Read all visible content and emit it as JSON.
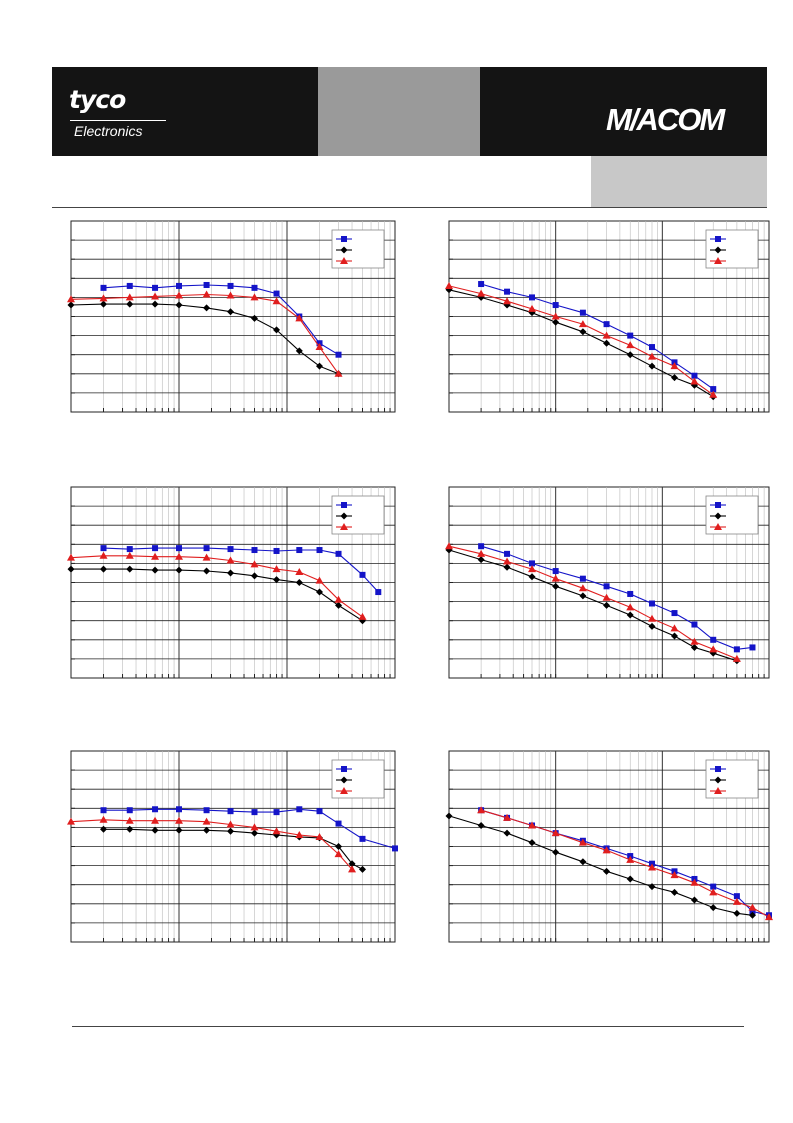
{
  "header": {
    "brand_tyco": "tyco",
    "brand_electronics": "Electronics",
    "brand_macom": "M/ACOM"
  },
  "colors": {
    "series_blue": "#1414c8",
    "series_black": "#000000",
    "series_red": "#e01e1e",
    "header_dark": "#141414",
    "header_gray": "#9a9a9a",
    "header_light_gray": "#c8c8c8"
  },
  "chart_data": [
    {
      "type": "line",
      "log_x": true,
      "xlim": [
        10,
        10000
      ],
      "ylim": [
        0,
        10
      ],
      "legend_position": "top-right",
      "grid": true,
      "series": [
        {
          "color": "blue",
          "marker": "square",
          "x": [
            20,
            35,
            60,
            100,
            180,
            300,
            500,
            800,
            1300,
            2000,
            3000
          ],
          "y": [
            6.5,
            6.6,
            6.5,
            6.6,
            6.65,
            6.6,
            6.5,
            6.2,
            5.0,
            3.6,
            3.0
          ]
        },
        {
          "color": "black",
          "marker": "diamond",
          "x": [
            10,
            20,
            35,
            60,
            100,
            180,
            300,
            500,
            800,
            1300,
            2000,
            3000
          ],
          "y": [
            5.6,
            5.65,
            5.65,
            5.65,
            5.6,
            5.45,
            5.25,
            4.9,
            4.3,
            3.2,
            2.4,
            2.0
          ]
        },
        {
          "color": "red",
          "marker": "triangle",
          "x": [
            10,
            20,
            35,
            60,
            100,
            180,
            300,
            500,
            800,
            1300,
            2000,
            3000
          ],
          "y": [
            5.9,
            5.95,
            6.0,
            6.05,
            6.1,
            6.15,
            6.1,
            6.0,
            5.8,
            4.9,
            3.4,
            2.0
          ]
        }
      ]
    },
    {
      "type": "line",
      "log_x": true,
      "xlim": [
        10,
        10000
      ],
      "ylim": [
        0,
        10
      ],
      "legend_position": "top-right",
      "grid": true,
      "series": [
        {
          "color": "blue",
          "marker": "square",
          "x": [
            20,
            35,
            60,
            100,
            180,
            300,
            500,
            800,
            1300,
            2000,
            3000
          ],
          "y": [
            6.7,
            6.3,
            6.0,
            5.6,
            5.2,
            4.6,
            4.0,
            3.4,
            2.6,
            1.9,
            1.2
          ]
        },
        {
          "color": "black",
          "marker": "diamond",
          "x": [
            10,
            20,
            35,
            60,
            100,
            180,
            300,
            500,
            800,
            1300,
            2000,
            3000
          ],
          "y": [
            6.4,
            6.0,
            5.6,
            5.2,
            4.7,
            4.2,
            3.6,
            3.0,
            2.4,
            1.8,
            1.4,
            0.8
          ]
        },
        {
          "color": "red",
          "marker": "triangle",
          "x": [
            10,
            20,
            35,
            60,
            100,
            180,
            300,
            500,
            800,
            1300,
            2000,
            3000
          ],
          "y": [
            6.6,
            6.2,
            5.8,
            5.4,
            5.0,
            4.6,
            4.0,
            3.5,
            2.9,
            2.4,
            1.6,
            0.9
          ]
        }
      ]
    },
    {
      "type": "line",
      "log_x": true,
      "xlim": [
        10,
        10000
      ],
      "ylim": [
        0,
        10
      ],
      "legend_position": "top-right",
      "grid": true,
      "series": [
        {
          "color": "blue",
          "marker": "square",
          "x": [
            20,
            35,
            60,
            100,
            180,
            300,
            500,
            800,
            1300,
            2000,
            3000,
            5000,
            7000
          ],
          "y": [
            6.8,
            6.75,
            6.8,
            6.8,
            6.8,
            6.75,
            6.7,
            6.65,
            6.7,
            6.7,
            6.5,
            5.4,
            4.5
          ]
        },
        {
          "color": "black",
          "marker": "diamond",
          "x": [
            10,
            20,
            35,
            60,
            100,
            180,
            300,
            500,
            800,
            1300,
            2000,
            3000,
            5000
          ],
          "y": [
            5.7,
            5.7,
            5.7,
            5.65,
            5.65,
            5.6,
            5.5,
            5.35,
            5.15,
            5.0,
            4.5,
            3.8,
            3.0
          ]
        },
        {
          "color": "red",
          "marker": "triangle",
          "x": [
            10,
            20,
            35,
            60,
            100,
            180,
            300,
            500,
            800,
            1300,
            2000,
            3000,
            5000
          ],
          "y": [
            6.3,
            6.4,
            6.4,
            6.35,
            6.35,
            6.3,
            6.15,
            5.95,
            5.7,
            5.55,
            5.1,
            4.1,
            3.2
          ]
        }
      ]
    },
    {
      "type": "line",
      "log_x": true,
      "xlim": [
        10,
        10000
      ],
      "ylim": [
        0,
        10
      ],
      "legend_position": "top-right",
      "grid": true,
      "series": [
        {
          "color": "blue",
          "marker": "square",
          "x": [
            20,
            35,
            60,
            100,
            180,
            300,
            500,
            800,
            1300,
            2000,
            3000,
            5000,
            7000
          ],
          "y": [
            6.9,
            6.5,
            6.0,
            5.6,
            5.2,
            4.8,
            4.4,
            3.9,
            3.4,
            2.8,
            2.0,
            1.5,
            1.6
          ]
        },
        {
          "color": "black",
          "marker": "diamond",
          "x": [
            10,
            20,
            35,
            60,
            100,
            180,
            300,
            500,
            800,
            1300,
            2000,
            3000,
            5000
          ],
          "y": [
            6.7,
            6.2,
            5.8,
            5.3,
            4.8,
            4.3,
            3.8,
            3.3,
            2.7,
            2.2,
            1.6,
            1.3,
            0.9
          ]
        },
        {
          "color": "red",
          "marker": "triangle",
          "x": [
            10,
            20,
            35,
            60,
            100,
            180,
            300,
            500,
            800,
            1300,
            2000,
            3000,
            5000
          ],
          "y": [
            6.9,
            6.5,
            6.1,
            5.7,
            5.2,
            4.7,
            4.2,
            3.7,
            3.1,
            2.6,
            1.9,
            1.5,
            1.0
          ]
        }
      ]
    },
    {
      "type": "line",
      "log_x": true,
      "xlim": [
        10,
        10000
      ],
      "ylim": [
        0,
        10
      ],
      "legend_position": "top-right",
      "grid": true,
      "series": [
        {
          "color": "blue",
          "marker": "square",
          "x": [
            20,
            35,
            60,
            100,
            180,
            300,
            500,
            800,
            1300,
            2000,
            3000,
            5000,
            10000
          ],
          "y": [
            6.9,
            6.9,
            6.95,
            6.95,
            6.9,
            6.85,
            6.8,
            6.8,
            6.95,
            6.85,
            6.2,
            5.4,
            4.9
          ]
        },
        {
          "color": "black",
          "marker": "diamond",
          "x": [
            20,
            35,
            60,
            100,
            180,
            300,
            500,
            800,
            1300,
            2000,
            3000,
            4000,
            5000
          ],
          "y": [
            5.9,
            5.9,
            5.85,
            5.85,
            5.85,
            5.8,
            5.7,
            5.6,
            5.5,
            5.45,
            5.0,
            4.1,
            3.8
          ]
        },
        {
          "color": "red",
          "marker": "triangle",
          "x": [
            10,
            20,
            35,
            60,
            100,
            180,
            300,
            500,
            800,
            1300,
            2000,
            3000,
            4000
          ],
          "y": [
            6.3,
            6.4,
            6.35,
            6.35,
            6.35,
            6.3,
            6.15,
            6.0,
            5.8,
            5.6,
            5.5,
            4.6,
            3.8
          ]
        }
      ]
    },
    {
      "type": "line",
      "log_x": true,
      "xlim": [
        10,
        10000
      ],
      "ylim": [
        0,
        10
      ],
      "legend_position": "top-right",
      "grid": true,
      "series": [
        {
          "color": "blue",
          "marker": "square",
          "x": [
            20,
            35,
            60,
            100,
            180,
            300,
            500,
            800,
            1300,
            2000,
            3000,
            5000,
            7000,
            10000
          ],
          "y": [
            6.9,
            6.5,
            6.1,
            5.7,
            5.3,
            4.9,
            4.5,
            4.1,
            3.7,
            3.3,
            2.9,
            2.4,
            1.6,
            1.4
          ]
        },
        {
          "color": "black",
          "marker": "diamond",
          "x": [
            10,
            20,
            35,
            60,
            100,
            180,
            300,
            500,
            800,
            1300,
            2000,
            3000,
            5000,
            7000
          ],
          "y": [
            6.6,
            6.1,
            5.7,
            5.2,
            4.7,
            4.2,
            3.7,
            3.3,
            2.9,
            2.6,
            2.2,
            1.8,
            1.5,
            1.4
          ]
        },
        {
          "color": "red",
          "marker": "triangle",
          "x": [
            20,
            35,
            60,
            100,
            180,
            300,
            500,
            800,
            1300,
            2000,
            3000,
            5000,
            7000,
            10000
          ],
          "y": [
            6.9,
            6.5,
            6.1,
            5.7,
            5.2,
            4.8,
            4.3,
            3.9,
            3.5,
            3.1,
            2.6,
            2.1,
            1.8,
            1.3
          ]
        }
      ]
    }
  ]
}
